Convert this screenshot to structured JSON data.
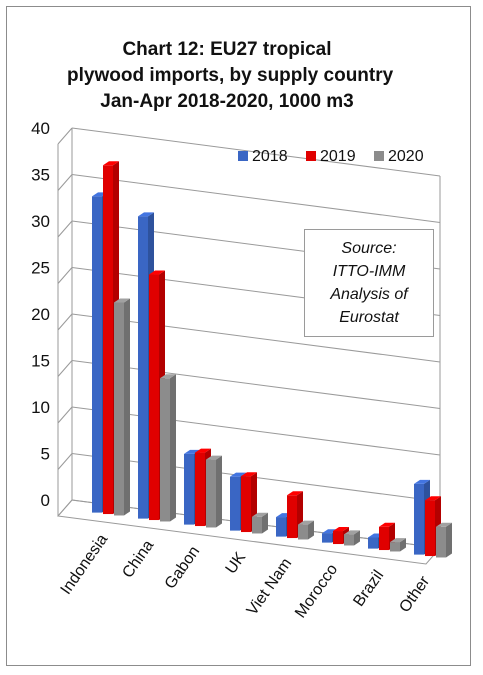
{
  "chart_data": {
    "type": "bar",
    "title": [
      "Chart 12: EU27 tropical",
      "plywood imports, by supply country",
      "Jan-Apr 2018-2020, 1000 m3"
    ],
    "categories": [
      "Indonesia",
      "China",
      "Gabon",
      "UK",
      "Viet Nam",
      "Morocco",
      "Brazil",
      "Other"
    ],
    "series": [
      {
        "name": "2018",
        "color": "#3a66c4",
        "values": [
          34.0,
          32.5,
          7.6,
          5.8,
          2.1,
          1.0,
          1.2,
          7.6
        ]
      },
      {
        "name": "2019",
        "color": "#e00000",
        "values": [
          37.5,
          26.4,
          7.9,
          6.0,
          4.6,
          1.4,
          2.5,
          6.0
        ]
      },
      {
        "name": "2020",
        "color": "#8c8c8c",
        "values": [
          22.9,
          15.4,
          7.3,
          1.8,
          1.6,
          1.2,
          1.0,
          3.3
        ]
      }
    ],
    "yticks": [
      "0",
      "5",
      "10",
      "15",
      "20",
      "25",
      "30",
      "35",
      "40"
    ],
    "ylim": [
      0,
      40
    ],
    "xlabel": "",
    "ylabel": "",
    "legend_position": "top-right",
    "grid": true,
    "style": "3d-clustered-bar",
    "annotation": [
      "Source:",
      "ITTO-IMM",
      "Analysis of",
      "Eurostat"
    ]
  }
}
